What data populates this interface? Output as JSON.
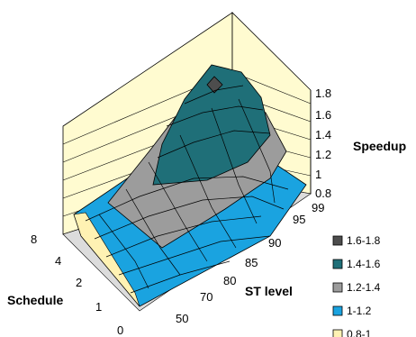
{
  "chart_data": {
    "type": "surface",
    "z_axis": {
      "label": "Speedup",
      "ticks": [
        "0.8",
        "1",
        "1.2",
        "1.4",
        "1.6",
        "1.8"
      ],
      "range": [
        0.8,
        1.8
      ]
    },
    "x_axis": {
      "label": "ST level",
      "ticks": [
        "50",
        "70",
        "80",
        "85",
        "90",
        "95",
        "99"
      ]
    },
    "y_axis": {
      "label": "Schedule",
      "ticks": [
        "0",
        "1",
        "2",
        "4",
        "8"
      ]
    },
    "legend": [
      {
        "label": "1.6-1.8",
        "color": "#4d4d4d"
      },
      {
        "label": "1.4-1.6",
        "color": "#1f6f78"
      },
      {
        "label": "1.2-1.4",
        "color": "#9c9c9c"
      },
      {
        "label": "1-1.2",
        "color": "#1aa3e0"
      },
      {
        "label": "0.8-1",
        "color": "#fff2b3"
      }
    ],
    "bands": [
      {
        "range": "1.6-1.8",
        "color": "#4d4d4d"
      },
      {
        "range": "1.4-1.6",
        "color": "#1f6f78"
      },
      {
        "range": "1.2-1.4",
        "color": "#9c9c9c"
      },
      {
        "range": "1-1.2",
        "color": "#1aa3e0"
      },
      {
        "range": "0.8-1",
        "color": "#fff2b3"
      }
    ],
    "grid": true,
    "legend_position": "bottom-right"
  }
}
